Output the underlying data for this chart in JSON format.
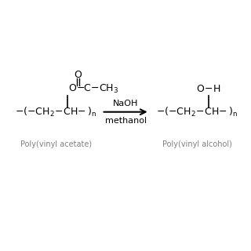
{
  "bg_color": "#ffffff",
  "text_color": "#000000",
  "label_color": "#808080",
  "arrow_color": "#000000",
  "reactant_label": "Poly(vinyl acetate)",
  "product_label": "Poly(vinyl alcohol)",
  "reagent_top": "NaOH",
  "reagent_bottom": "methanol",
  "figsize": [
    3.2,
    3.2
  ],
  "dpi": 100
}
